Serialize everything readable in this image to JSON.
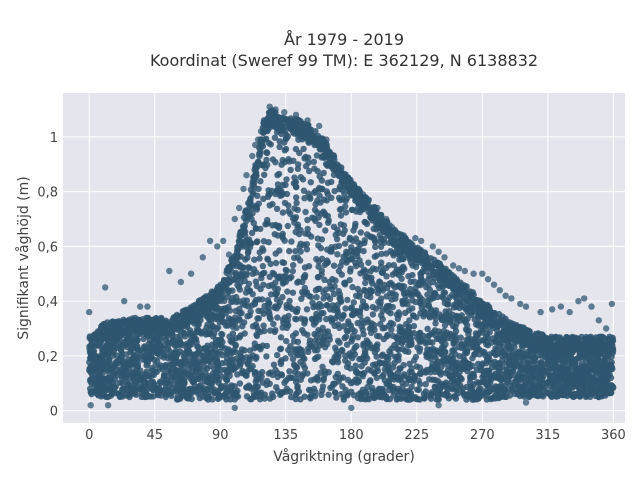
{
  "chart_data": {
    "type": "scatter",
    "title": [
      "År 1979 - 2019",
      "Koordinat (Sweref 99 TM): E 362129, N 6138832"
    ],
    "xlabel": "Vågriktning (grader)",
    "ylabel": "Signifikant våghöjd (m)",
    "xlim": [
      -18,
      368
    ],
    "ylim": [
      -0.045,
      1.16
    ],
    "xticks": [
      0,
      45,
      90,
      135,
      180,
      225,
      270,
      315,
      360
    ],
    "xtick_labels": [
      "0",
      "45",
      "90",
      "135",
      "180",
      "225",
      "270",
      "315",
      "360"
    ],
    "yticks": [
      0,
      0.2,
      0.4,
      0.6,
      0.8,
      1
    ],
    "ytick_labels": [
      "0",
      "0,2",
      "0,4",
      "0,6",
      "0,8",
      "1"
    ],
    "grid": true,
    "legend": "none",
    "marker_color": "#2f5670",
    "background_color": "#e5e5ee",
    "envelope": {
      "x": [
        0,
        10,
        20,
        30,
        40,
        50,
        60,
        70,
        80,
        90,
        100,
        110,
        115,
        120,
        125,
        130,
        140,
        150,
        160,
        170,
        180,
        190,
        200,
        210,
        220,
        230,
        240,
        250,
        260,
        270,
        280,
        290,
        300,
        310,
        320,
        330,
        340,
        350,
        360
      ],
      "upper": [
        0.27,
        0.32,
        0.33,
        0.34,
        0.34,
        0.34,
        0.35,
        0.38,
        0.42,
        0.46,
        0.58,
        0.78,
        0.92,
        1.06,
        1.1,
        1.08,
        1.07,
        1.05,
        1.0,
        0.92,
        0.84,
        0.78,
        0.72,
        0.66,
        0.62,
        0.58,
        0.54,
        0.5,
        0.45,
        0.4,
        0.36,
        0.32,
        0.3,
        0.28,
        0.27,
        0.27,
        0.27,
        0.27,
        0.27
      ],
      "lower": [
        0.06,
        0.05,
        0.05,
        0.05,
        0.05,
        0.05,
        0.04,
        0.04,
        0.04,
        0.04,
        0.04,
        0.04,
        0.04,
        0.04,
        0.04,
        0.04,
        0.04,
        0.04,
        0.04,
        0.04,
        0.04,
        0.04,
        0.04,
        0.04,
        0.04,
        0.04,
        0.04,
        0.04,
        0.04,
        0.04,
        0.04,
        0.05,
        0.05,
        0.05,
        0.05,
        0.05,
        0.05,
        0.05,
        0.06
      ]
    },
    "outliers": [
      [
        0,
        0.36
      ],
      [
        1,
        0.02
      ],
      [
        11,
        0.45
      ],
      [
        13,
        0.02
      ],
      [
        24,
        0.4
      ],
      [
        35,
        0.38
      ],
      [
        40,
        0.38
      ],
      [
        55,
        0.51
      ],
      [
        63,
        0.47
      ],
      [
        70,
        0.5
      ],
      [
        78,
        0.56
      ],
      [
        83,
        0.62
      ],
      [
        88,
        0.6
      ],
      [
        92,
        0.62
      ],
      [
        96,
        0.57
      ],
      [
        100,
        0.7
      ],
      [
        103,
        0.74
      ],
      [
        106,
        0.81
      ],
      [
        108,
        0.86
      ],
      [
        112,
        0.93
      ],
      [
        114,
        0.97
      ],
      [
        116,
        0.99
      ],
      [
        118,
        1.02
      ],
      [
        124,
        1.11
      ],
      [
        128,
        1.1
      ],
      [
        134,
        1.09
      ],
      [
        142,
        1.08
      ],
      [
        150,
        1.06
      ],
      [
        158,
        1.04
      ],
      [
        163,
        0.99
      ],
      [
        168,
        0.93
      ],
      [
        173,
        0.88
      ],
      [
        178,
        0.85
      ],
      [
        182,
        0.82
      ],
      [
        188,
        0.79
      ],
      [
        192,
        0.77
      ],
      [
        198,
        0.74
      ],
      [
        204,
        0.7
      ],
      [
        208,
        0.67
      ],
      [
        216,
        0.64
      ],
      [
        224,
        0.63
      ],
      [
        228,
        0.62
      ],
      [
        236,
        0.6
      ],
      [
        240,
        0.58
      ],
      [
        244,
        0.56
      ],
      [
        250,
        0.53
      ],
      [
        254,
        0.52
      ],
      [
        258,
        0.51
      ],
      [
        264,
        0.5
      ],
      [
        270,
        0.5
      ],
      [
        274,
        0.48
      ],
      [
        278,
        0.46
      ],
      [
        282,
        0.44
      ],
      [
        286,
        0.42
      ],
      [
        290,
        0.41
      ],
      [
        296,
        0.39
      ],
      [
        300,
        0.38
      ],
      [
        310,
        0.36
      ],
      [
        318,
        0.37
      ],
      [
        324,
        0.38
      ],
      [
        330,
        0.36
      ],
      [
        336,
        0.4
      ],
      [
        340,
        0.41
      ],
      [
        345,
        0.38
      ],
      [
        350,
        0.33
      ],
      [
        355,
        0.3
      ],
      [
        359,
        0.39
      ],
      [
        240,
        0.02
      ],
      [
        300,
        0.03
      ],
      [
        350,
        0.05
      ],
      [
        180,
        0.01
      ],
      [
        100,
        0.01
      ]
    ]
  }
}
